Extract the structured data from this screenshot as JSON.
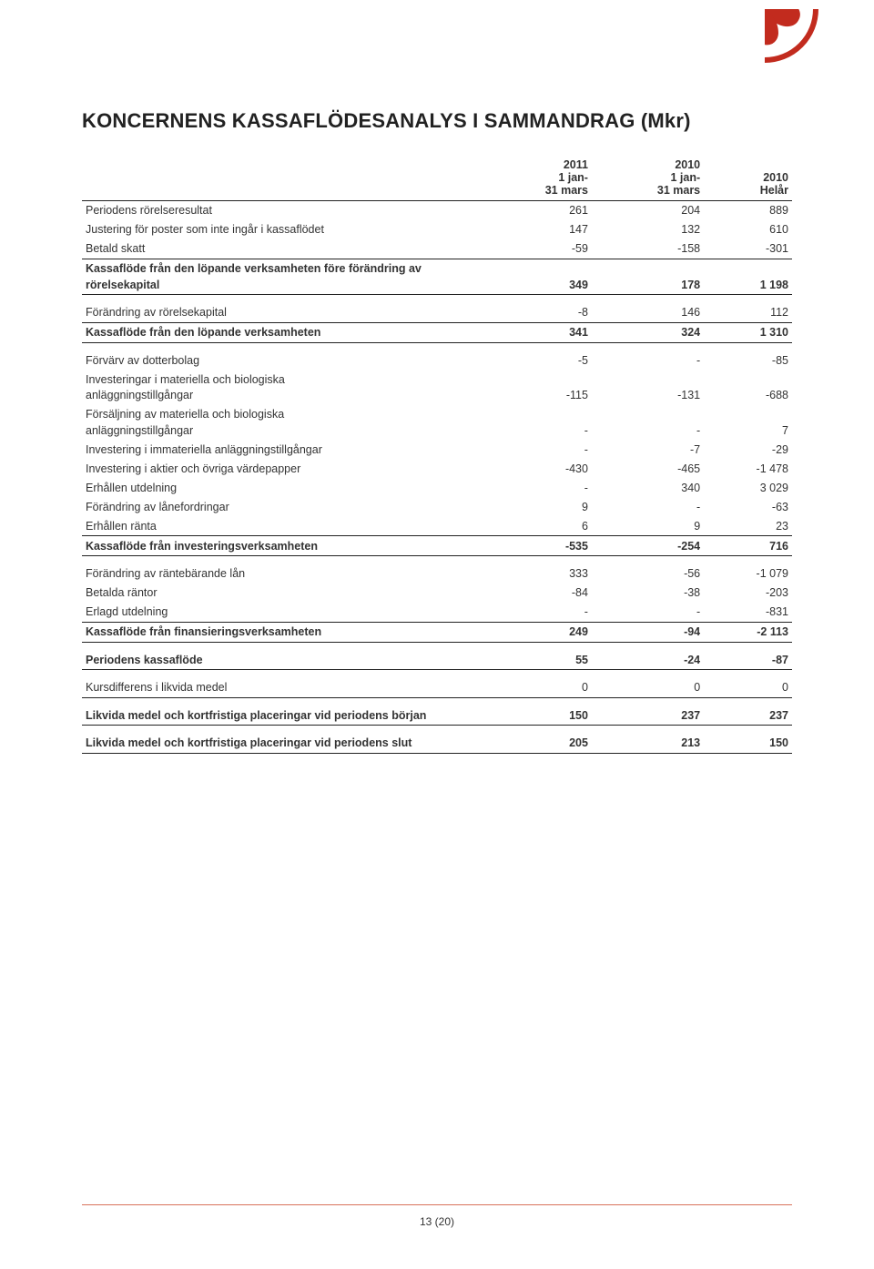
{
  "title": "KONCERNENS KASSAFLÖDESANALYS I SAMMANDRAG (Mkr)",
  "columns": {
    "c1_l1": "2011",
    "c1_l2": "1 jan-",
    "c1_l3": "31 mars",
    "c2_l1": "2010",
    "c2_l2": "1 jan-",
    "c2_l3": "31 mars",
    "c3_l1": "",
    "c3_l2": "2010",
    "c3_l3": "Helår"
  },
  "rows": [
    {
      "label": "Periodens rörelseresultat",
      "c1": "261",
      "c2": "204",
      "c3": "889"
    },
    {
      "label": "Justering för poster som inte ingår i kassaflödet",
      "c1": "147",
      "c2": "132",
      "c3": "610"
    },
    {
      "label": "Betald skatt",
      "c1": "-59",
      "c2": "-158",
      "c3": "-301",
      "rule": true
    },
    {
      "label": "Kassaflöde från den löpande verksamheten före förändring av",
      "c1": "",
      "c2": "",
      "c3": "",
      "bold": true,
      "tight": true
    },
    {
      "label": "rörelsekapital",
      "c1": "349",
      "c2": "178",
      "c3": "1 198",
      "bold": true,
      "rule": true
    },
    {
      "label": "Förändring av rörelsekapital",
      "c1": "-8",
      "c2": "146",
      "c3": "112",
      "spacer": true,
      "rule": true
    },
    {
      "label": "Kassaflöde från den löpande verksamheten",
      "c1": "341",
      "c2": "324",
      "c3": "1 310",
      "bold": true,
      "rule": true
    },
    {
      "label": "Förvärv av dotterbolag",
      "c1": "-5",
      "c2": "-",
      "c3": "-85",
      "spacer": true
    },
    {
      "label": "Investeringar i materiella och biologiska",
      "c1": "",
      "c2": "",
      "c3": "",
      "tight": true
    },
    {
      "label": "anläggningstillgångar",
      "c1": "-115",
      "c2": "-131",
      "c3": "-688"
    },
    {
      "label": "Försäljning av materiella och biologiska",
      "c1": "",
      "c2": "",
      "c3": "",
      "tight": true
    },
    {
      "label": "anläggningstillgångar",
      "c1": "-",
      "c2": "-",
      "c3": "7"
    },
    {
      "label": "Investering i immateriella anläggningstillgångar",
      "c1": "-",
      "c2": "-7",
      "c3": "-29"
    },
    {
      "label": "Investering i aktier och övriga värdepapper",
      "c1": "-430",
      "c2": "-465",
      "c3": "-1 478"
    },
    {
      "label": "Erhållen utdelning",
      "c1": "-",
      "c2": "340",
      "c3": "3 029"
    },
    {
      "label": "Förändring av lånefordringar",
      "c1": "9",
      "c2": "-",
      "c3": "-63"
    },
    {
      "label": "Erhållen ränta",
      "c1": "6",
      "c2": "9",
      "c3": "23",
      "rule": true
    },
    {
      "label": "Kassaflöde från investeringsverksamheten",
      "c1": "-535",
      "c2": "-254",
      "c3": "716",
      "bold": true,
      "rule": true
    },
    {
      "label": "Förändring av räntebärande lån",
      "c1": "333",
      "c2": "-56",
      "c3": "-1 079",
      "spacer": true
    },
    {
      "label": "Betalda räntor",
      "c1": "-84",
      "c2": "-38",
      "c3": "-203"
    },
    {
      "label": "Erlagd utdelning",
      "c1": "-",
      "c2": "-",
      "c3": "-831",
      "rule": true
    },
    {
      "label": "Kassaflöde från finansieringsverksamheten",
      "c1": "249",
      "c2": "-94",
      "c3": "-2 113",
      "bold": true,
      "rule": true
    },
    {
      "label": "Periodens kassaflöde",
      "c1": "55",
      "c2": "-24",
      "c3": "-87",
      "bold": true,
      "spacer": true,
      "rule": true
    },
    {
      "label": "Kursdifferens i likvida medel",
      "c1": "0",
      "c2": "0",
      "c3": "0",
      "spacer": true,
      "rule": true
    },
    {
      "label": "Likvida medel och kortfristiga placeringar vid periodens början",
      "c1": "150",
      "c2": "237",
      "c3": "237",
      "bold": true,
      "spacer": true,
      "rule": true
    },
    {
      "label": "Likvida medel och kortfristiga placeringar vid periodens slut",
      "c1": "205",
      "c2": "213",
      "c3": "150",
      "bold": true,
      "spacer": true,
      "rule": true
    }
  ],
  "pagenum": "13 (20)",
  "logo": {
    "ring_color": "#c22b1e",
    "petal_color": "#c22b1e",
    "inner_bg": "#ffffff"
  },
  "styling": {
    "text_color": "#333333",
    "heading_color": "#222222",
    "rule_color": "#222222",
    "footer_rule_color": "#d9735b",
    "background": "#ffffff",
    "font_size_body": 12.5,
    "font_size_title": 22
  }
}
